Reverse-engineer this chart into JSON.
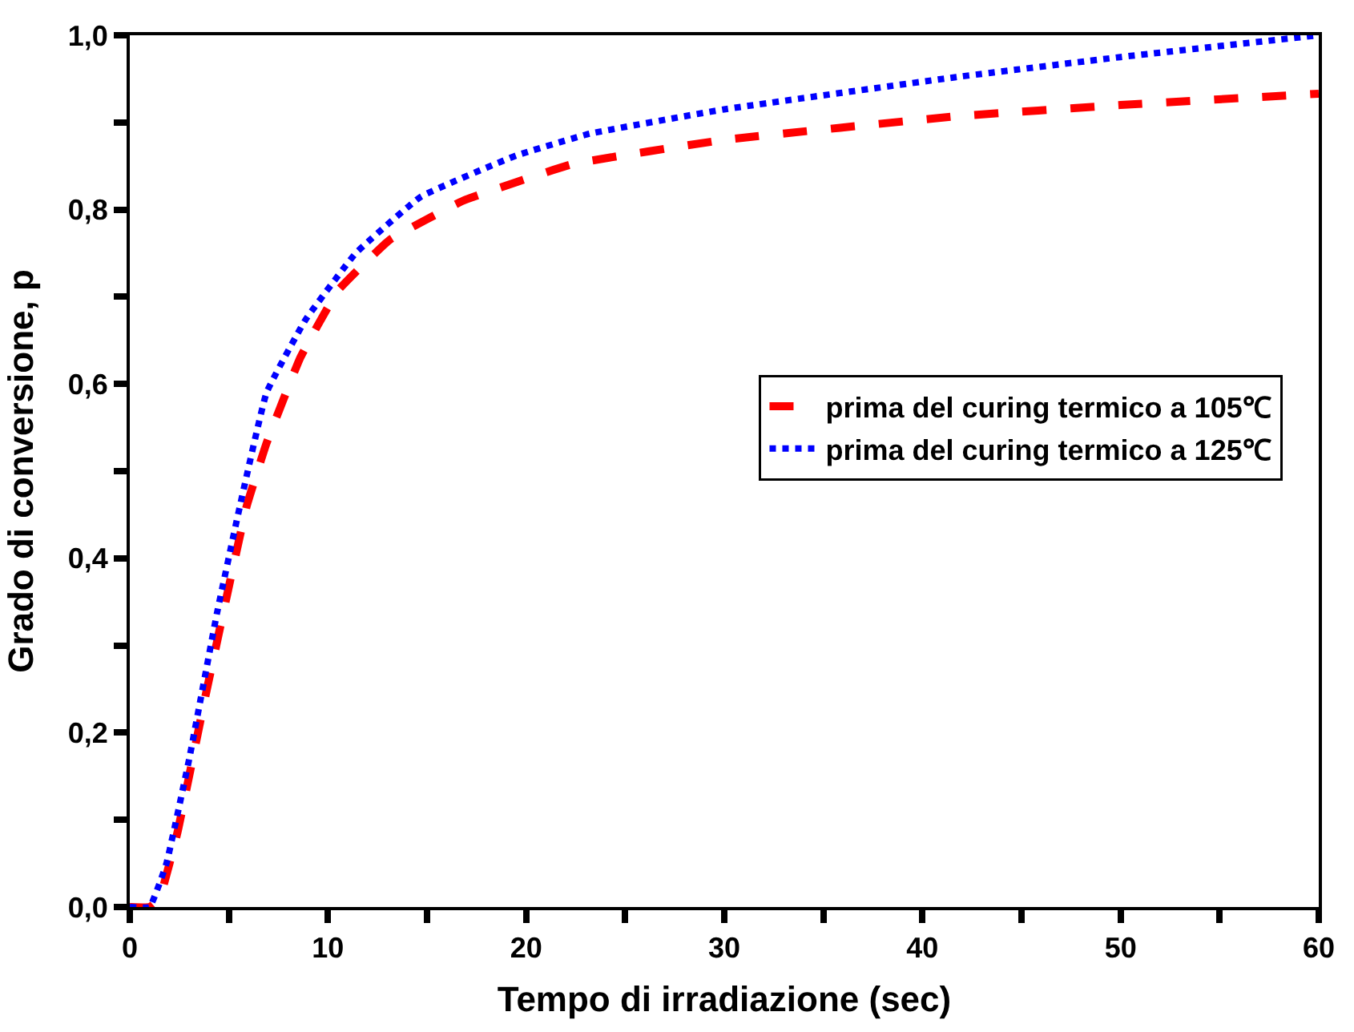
{
  "chart_data": {
    "type": "line",
    "xlabel": "Tempo di irradiazione (sec)",
    "ylabel": "Grado di conversione, p",
    "xlim": [
      0,
      60
    ],
    "ylim": [
      0,
      1
    ],
    "xticks": [
      0,
      10,
      20,
      30,
      40,
      50,
      60
    ],
    "yticks": [
      {
        "value": 0,
        "label": "0,0"
      },
      {
        "value": 0.2,
        "label": "0,2"
      },
      {
        "value": 0.4,
        "label": "0,4"
      },
      {
        "value": 0.6,
        "label": "0,6"
      },
      {
        "value": 0.8,
        "label": "0,8"
      },
      {
        "value": 1,
        "label": "1,0"
      }
    ],
    "legend": "right",
    "marker": "none",
    "series": [
      {
        "name": "prima del curing termico a 105℃",
        "color": "#ff0000",
        "line_style": "dashed",
        "x": [
          0,
          1,
          1.5,
          2.4,
          3.8,
          4.9,
          5.9,
          6.9,
          8.6,
          10.5,
          13.1,
          16.8,
          22.3,
          30,
          41.7,
          50,
          60
        ],
        "values": [
          0,
          0,
          0.01,
          0.085,
          0.24,
          0.357,
          0.46,
          0.532,
          0.63,
          0.707,
          0.765,
          0.81,
          0.852,
          0.88,
          0.907,
          0.92,
          0.933
        ]
      },
      {
        "name": "prima del curing termico a 125℃",
        "color": "#0000ff",
        "line_style": "dotted",
        "x": [
          0,
          1,
          1.85,
          3,
          4.4,
          5.5,
          6.9,
          8.85,
          11.4,
          14.7,
          19.5,
          23.2,
          30,
          41.7,
          50,
          60
        ],
        "values": [
          0,
          0,
          0.05,
          0.17,
          0.337,
          0.454,
          0.59,
          0.673,
          0.75,
          0.815,
          0.862,
          0.887,
          0.915,
          0.952,
          0.975,
          1.0
        ]
      }
    ]
  }
}
